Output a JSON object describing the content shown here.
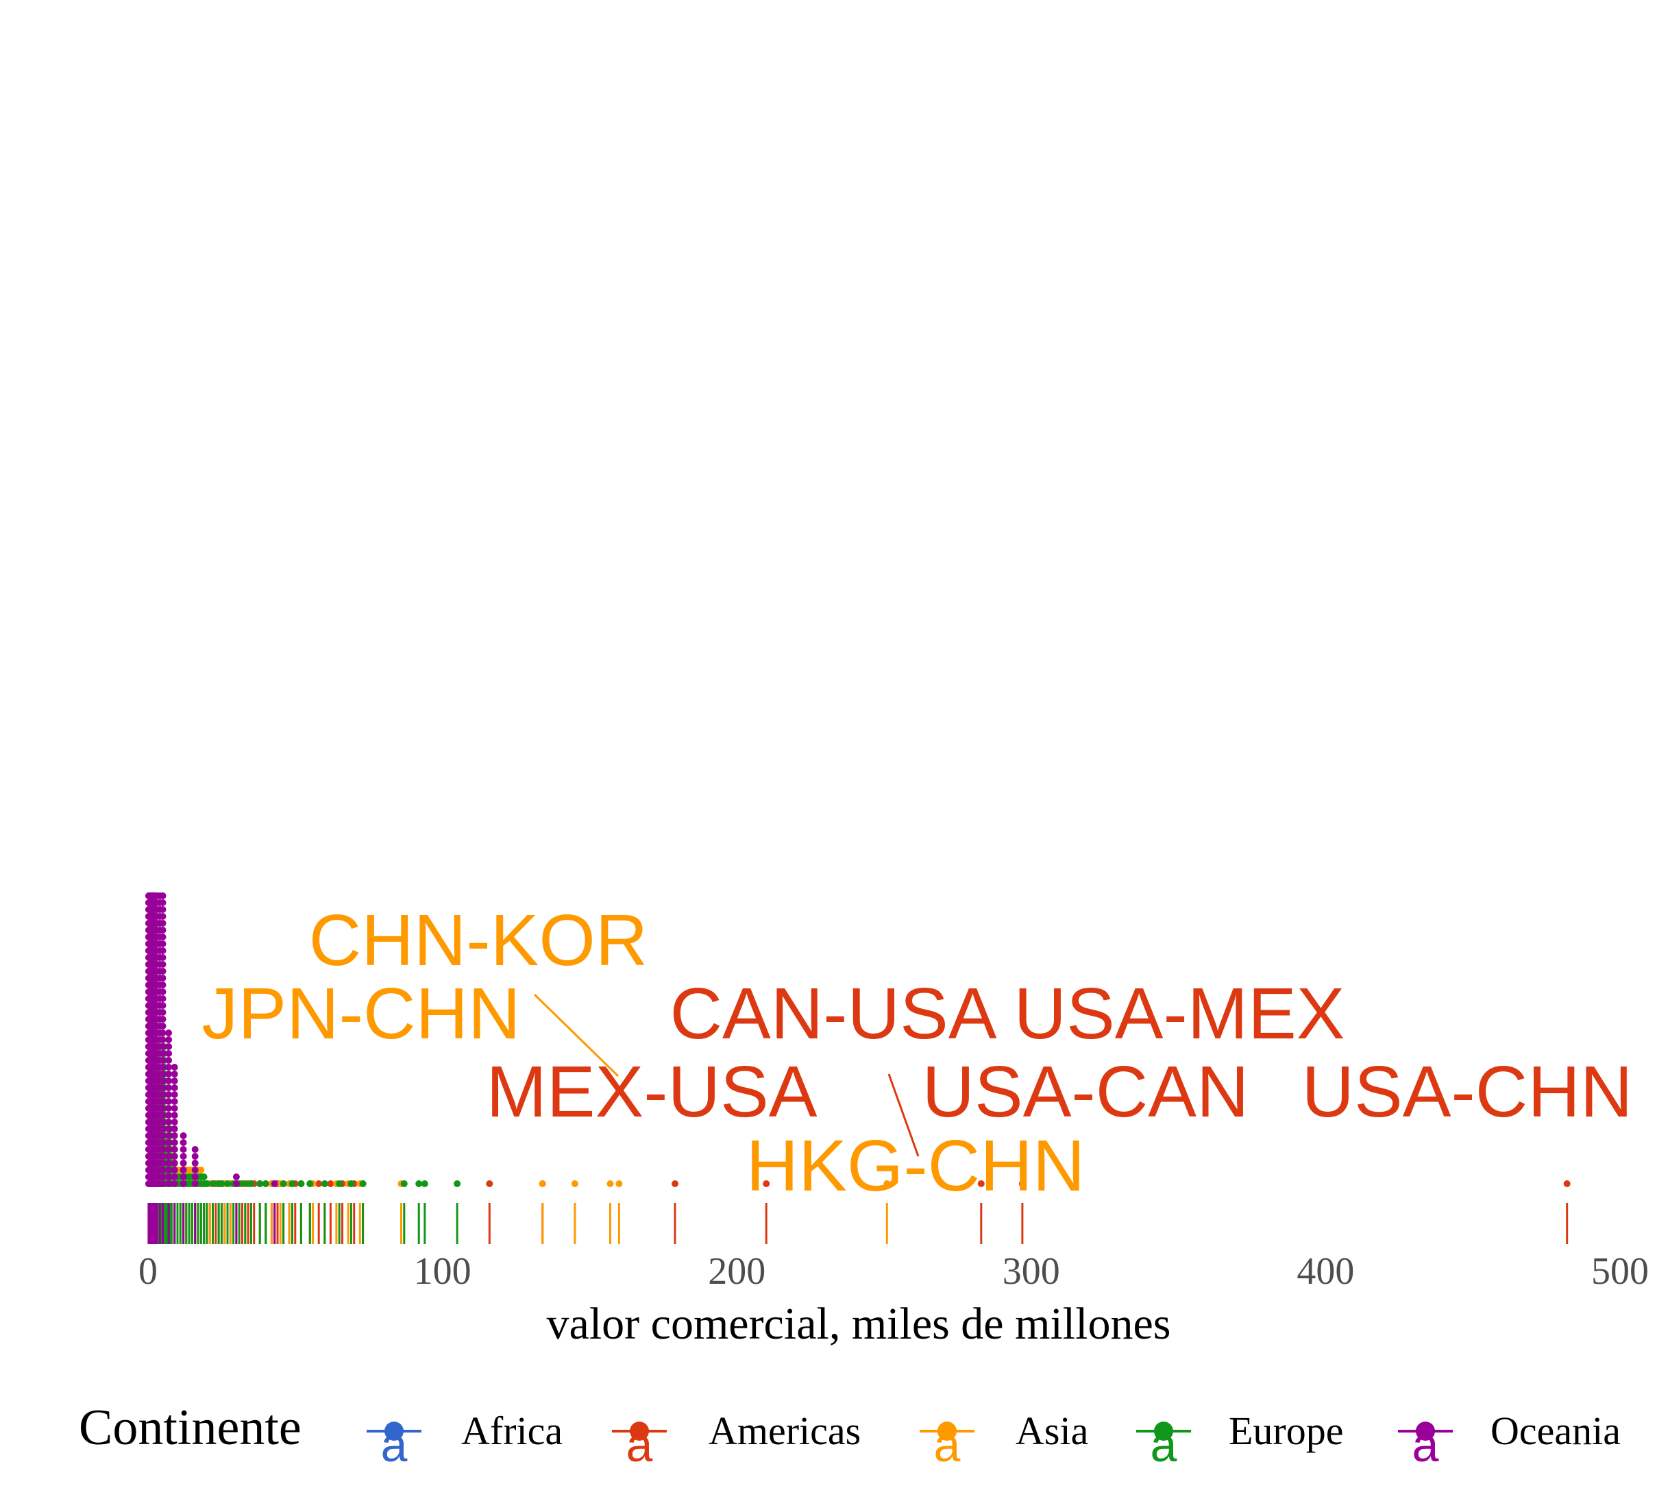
{
  "chart_data": {
    "type": "dotplot",
    "xlabel": "valor comercial, miles de millones",
    "xlim": [
      0,
      500
    ],
    "xticks": [
      0,
      100,
      200,
      300,
      400,
      500
    ],
    "grid": false,
    "legend": {
      "title": "Continente",
      "position": "bottom",
      "entries": [
        {
          "name": "Africa",
          "color": "#3366CC"
        },
        {
          "name": "Americas",
          "color": "#DC3912"
        },
        {
          "name": "Asia",
          "color": "#FF9900"
        },
        {
          "name": "Europe",
          "color": "#109618"
        },
        {
          "name": "Oceania",
          "color": "#990099"
        }
      ]
    },
    "annotations": [
      {
        "label": "CHN-KOR",
        "continent": "Asia",
        "x": 160
      },
      {
        "label": "JPN-CHN",
        "continent": "Asia",
        "x": 157
      },
      {
        "label": "CAN-USA",
        "continent": "Americas",
        "x": 210
      },
      {
        "label": "USA-MEX",
        "continent": "Americas",
        "x": 297
      },
      {
        "label": "MEX-USA",
        "continent": "Americas",
        "x": 179
      },
      {
        "label": "USA-CAN",
        "continent": "Americas",
        "x": 283
      },
      {
        "label": "USA-CHN",
        "continent": "Americas",
        "x": 482
      },
      {
        "label": "HKG-CHN",
        "continent": "Asia",
        "x": 251
      }
    ],
    "series": [
      {
        "name": "Americas",
        "color": "#DC3912",
        "x": [
          0.3,
          0.5,
          0.8,
          1,
          1.3,
          1.6,
          2,
          2.4,
          2.8,
          3.3,
          3.8,
          4.5,
          5,
          5.5,
          6,
          7,
          8,
          9,
          10,
          11,
          12,
          13,
          14,
          15,
          16,
          17,
          18,
          19,
          20,
          21,
          22,
          23,
          24,
          25,
          26,
          28,
          30,
          32,
          34,
          36,
          38,
          40,
          42,
          44,
          46,
          48,
          50,
          52,
          55,
          58,
          62,
          66,
          70,
          73,
          116,
          134,
          179,
          210,
          283,
          297,
          482
        ]
      },
      {
        "name": "Asia",
        "color": "#FF9900",
        "x": [
          0.4,
          1,
          1.5,
          2,
          3,
          4,
          5,
          6,
          7,
          8,
          9,
          10,
          11,
          12,
          13,
          14,
          15,
          17,
          18,
          20,
          21,
          22,
          24,
          26,
          28,
          30,
          31,
          33,
          35,
          38,
          40,
          42,
          45,
          48,
          52,
          56,
          60,
          64,
          68,
          72,
          86,
          134,
          145,
          157,
          160,
          251
        ]
      },
      {
        "name": "Europe",
        "color": "#109618",
        "x": [
          0.4,
          1,
          1.5,
          2,
          2.5,
          3,
          3.5,
          4,
          4.5,
          5,
          5.5,
          6,
          6.5,
          7,
          7.5,
          8,
          9,
          10,
          11,
          12,
          13,
          14,
          15,
          16,
          17,
          18,
          19,
          20,
          22,
          24,
          25,
          27,
          29,
          31,
          33,
          35,
          38,
          40,
          43,
          46,
          49,
          52,
          55,
          60,
          65,
          69,
          73,
          87,
          92,
          94,
          105
        ]
      },
      {
        "name": "Oceania",
        "color": "#990099",
        "x": [
          0.2,
          0.4,
          0.6,
          0.8,
          1,
          1.2,
          1.5,
          2,
          2.5,
          3,
          4,
          5,
          7,
          9,
          12,
          16,
          30,
          43
        ]
      }
    ]
  }
}
